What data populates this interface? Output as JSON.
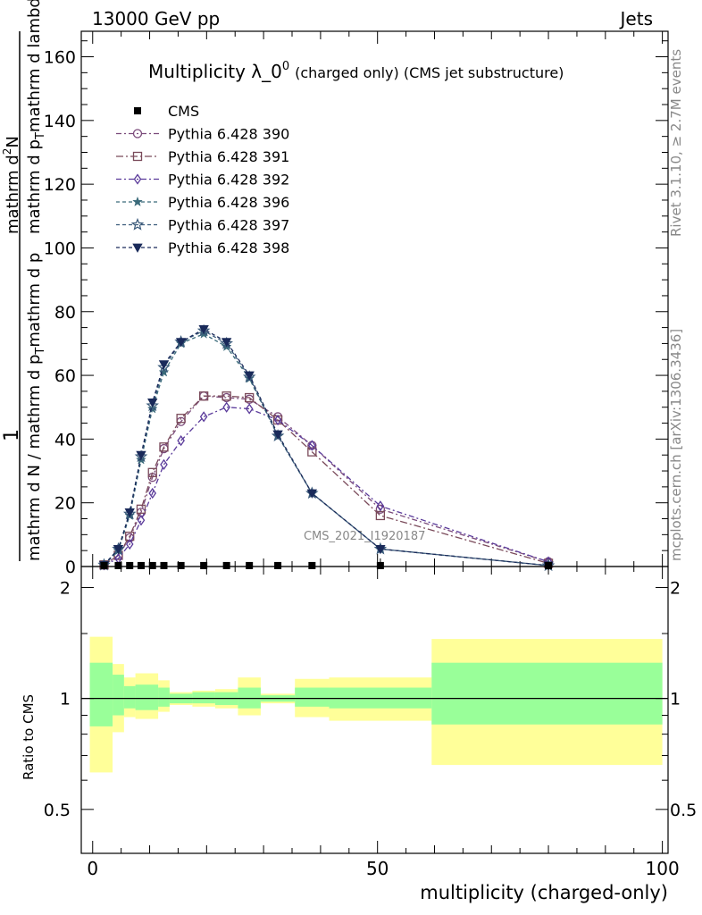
{
  "header": {
    "left": "13000 GeV pp",
    "right": "Jets"
  },
  "side": {
    "rivet": "Rivet 3.1.10, ≥ 2.7M events",
    "mcplots": "mcplots.cern.ch [arXiv:1306.3436]"
  },
  "watermark": "CMS_2021_I1920187",
  "chart_data": {
    "type": "line",
    "title_main": "Multiplicity λ_0",
    "title_sup": "0",
    "title_suffix": "(charged only) (CMS jet substructure)",
    "ylabel_pre": "1",
    "ylabel_den": "mathrm d N / mathrm d p",
    "ylabel_den_sub": "T",
    "ylabel_den_post": "mathrm d p",
    "ylabel_num": "mathrm d",
    "ylabel_num_sup": "2",
    "ylabel_num_post": "N",
    "ylabel_den2": "mathrm d p",
    "ylabel_den2_sub": "T",
    "ylabel_den2_post": "mathrm d lambda",
    "ratio_ylabel": "Ratio to CMS",
    "xlabel": "multiplicity (charged-only)",
    "xlim": [
      -2,
      101
    ],
    "ylim": [
      0,
      168
    ],
    "ratio_ylim": [
      0.38,
      2.28
    ],
    "xticks": [
      0,
      50,
      100
    ],
    "yticks": [
      0,
      20,
      40,
      60,
      80,
      100,
      120,
      140,
      160
    ],
    "ratio_yticks": [
      0.5,
      1,
      2
    ],
    "cms": {
      "name": "CMS",
      "x": [
        2,
        4.5,
        6.5,
        8.5,
        10.5,
        12.5,
        15.5,
        19.5,
        23.5,
        27.5,
        32.5,
        38.5,
        50.5,
        80
      ],
      "y": [
        0.3,
        0.3,
        0.3,
        0.3,
        0.3,
        0.3,
        0.3,
        0.3,
        0.3,
        0.3,
        0.3,
        0.3,
        0.3,
        0.3
      ]
    },
    "ratio_bands": [
      {
        "x0": -0.5,
        "x1": 3.5,
        "g": [
          0.84,
          1.25
        ],
        "y": [
          0.63,
          1.47
        ]
      },
      {
        "x0": 3.5,
        "x1": 5.5,
        "g": [
          0.9,
          1.16
        ],
        "y": [
          0.81,
          1.24
        ]
      },
      {
        "x0": 5.5,
        "x1": 7.5,
        "g": [
          0.94,
          1.08
        ],
        "y": [
          0.89,
          1.14
        ]
      },
      {
        "x0": 7.5,
        "x1": 11.5,
        "g": [
          0.93,
          1.09
        ],
        "y": [
          0.88,
          1.17
        ]
      },
      {
        "x0": 11.5,
        "x1": 13.5,
        "g": [
          0.95,
          1.07
        ],
        "y": [
          0.92,
          1.12
        ]
      },
      {
        "x0": 13.5,
        "x1": 17.5,
        "g": [
          0.97,
          1.03
        ],
        "y": [
          0.96,
          1.04
        ]
      },
      {
        "x0": 17.5,
        "x1": 21.5,
        "g": [
          0.97,
          1.04
        ],
        "y": [
          0.95,
          1.05
        ]
      },
      {
        "x0": 21.5,
        "x1": 25.5,
        "g": [
          0.96,
          1.04
        ],
        "y": [
          0.94,
          1.06
        ]
      },
      {
        "x0": 25.5,
        "x1": 29.5,
        "g": [
          0.94,
          1.07
        ],
        "y": [
          0.9,
          1.14
        ]
      },
      {
        "x0": 29.5,
        "x1": 35.5,
        "g": [
          0.98,
          1.02
        ],
        "y": [
          0.97,
          1.03
        ]
      },
      {
        "x0": 35.5,
        "x1": 41.5,
        "g": [
          0.95,
          1.07
        ],
        "y": [
          0.89,
          1.13
        ]
      },
      {
        "x0": 41.5,
        "x1": 59.5,
        "g": [
          0.94,
          1.07
        ],
        "y": [
          0.87,
          1.14
        ]
      },
      {
        "x0": 59.5,
        "x1": 100,
        "g": [
          0.85,
          1.25
        ],
        "y": [
          0.66,
          1.45
        ]
      }
    ],
    "series": [
      {
        "name": "Pythia 6.428 390",
        "color": "#7a4a7a",
        "dash": "6,3,2,3",
        "marker": "circle",
        "x": [
          2,
          4.5,
          6.5,
          8.5,
          10.5,
          12.5,
          15.5,
          19.5,
          23.5,
          27.5,
          32.5,
          38.5,
          50.5,
          80
        ],
        "y": [
          0.5,
          3.5,
          9,
          17,
          28,
          37,
          45.5,
          53.5,
          53,
          52.5,
          47,
          38,
          18,
          1.5
        ]
      },
      {
        "name": "Pythia 6.428 391",
        "color": "#7a4a5a",
        "dash": "8,3,2,3",
        "marker": "square",
        "x": [
          2,
          4.5,
          6.5,
          8.5,
          10.5,
          12.5,
          15.5,
          19.5,
          23.5,
          27.5,
          32.5,
          38.5,
          50.5,
          80
        ],
        "y": [
          0.5,
          3.5,
          9.5,
          18,
          29.5,
          37.5,
          46.5,
          53.5,
          53.5,
          53,
          46,
          36,
          16,
          1
        ]
      },
      {
        "name": "Pythia 6.428 392",
        "color": "#5a3a9a",
        "dash": "6,3,2,3",
        "marker": "diamond",
        "x": [
          2,
          4.5,
          6.5,
          8.5,
          10.5,
          12.5,
          15.5,
          19.5,
          23.5,
          27.5,
          32.5,
          38.5,
          50.5,
          80
        ],
        "y": [
          0.5,
          2.5,
          7,
          14.5,
          23,
          32,
          39.5,
          47,
          50,
          49.5,
          46,
          38,
          19,
          1.5
        ]
      },
      {
        "name": "Pythia 6.428 396",
        "color": "#3a6a7a",
        "dash": "4,3",
        "marker": "star6",
        "x": [
          2,
          4.5,
          6.5,
          8.5,
          10.5,
          12.5,
          15.5,
          19.5,
          23.5,
          27.5,
          32.5,
          38.5,
          50.5,
          80
        ],
        "y": [
          0.5,
          5,
          16,
          33.5,
          49.5,
          61,
          70,
          73,
          69,
          59,
          41,
          23,
          5.5,
          0.3
        ]
      },
      {
        "name": "Pythia 6.428 397",
        "color": "#3a5a7a",
        "dash": "4,3",
        "marker": "star5",
        "x": [
          2,
          4.5,
          6.5,
          8.5,
          10.5,
          12.5,
          15.5,
          19.5,
          23.5,
          27.5,
          32.5,
          38.5,
          50.5,
          80
        ],
        "y": [
          0.5,
          5.5,
          16.5,
          34.5,
          50.5,
          62.5,
          70.5,
          74,
          70,
          59.5,
          41,
          23,
          5.5,
          0.3
        ]
      },
      {
        "name": "Pythia 6.428 398",
        "color": "#1a2a5a",
        "dash": "4,3",
        "marker": "tri",
        "x": [
          2,
          4.5,
          6.5,
          8.5,
          10.5,
          12.5,
          15.5,
          19.5,
          23.5,
          27.5,
          32.5,
          38.5,
          50.5,
          80
        ],
        "y": [
          0.5,
          5.5,
          17,
          35,
          51.5,
          63.5,
          70.5,
          74.5,
          70.5,
          60,
          41.5,
          23,
          5.5,
          0.3
        ]
      }
    ],
    "legend_placement": "top-left",
    "grid": false
  }
}
